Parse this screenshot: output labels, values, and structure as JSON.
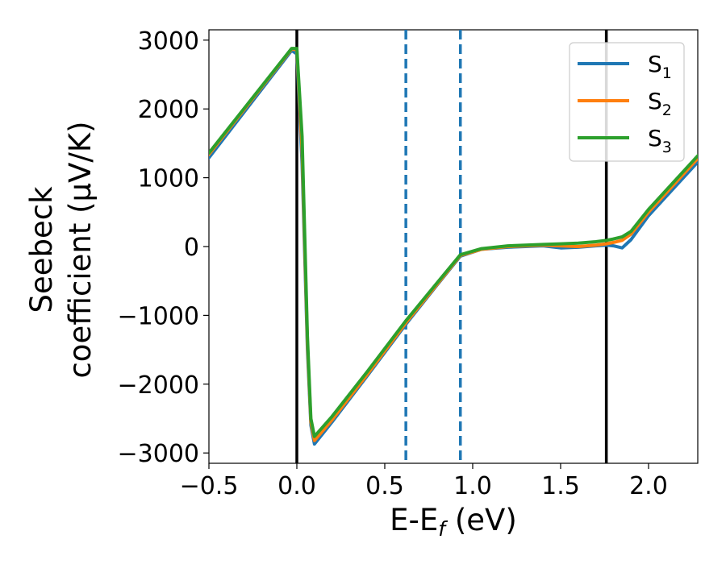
{
  "chart_data": {
    "type": "line",
    "xlabel": "E-E",
    "xlabel_sub": "f",
    "xlabel_unit": " (eV)",
    "ylabel_line1": "Seebeck",
    "ylabel_line2": "coefficient  (μV/K)",
    "xlim": [
      -0.5,
      2.28
    ],
    "ylim": [
      -3150,
      3150
    ],
    "xticks": [
      -0.5,
      0.0,
      0.5,
      1.0,
      1.5,
      2.0
    ],
    "xtick_labels": [
      "−0.5",
      "0.0",
      "0.5",
      "1.0",
      "1.5",
      "2.0"
    ],
    "yticks": [
      3000,
      2000,
      1000,
      0,
      -1000,
      -2000,
      -3000
    ],
    "ytick_labels": [
      "3000",
      "2000",
      "1000",
      "0",
      "−1000",
      "−2000",
      "−3000"
    ],
    "legend_position": "upper right",
    "vlines": [
      {
        "x": 0.0,
        "style": "solid",
        "color": "#000000"
      },
      {
        "x": 1.76,
        "style": "solid",
        "color": "#000000"
      },
      {
        "x": 0.62,
        "style": "dashed",
        "color": "#1f77b4"
      },
      {
        "x": 0.93,
        "style": "dashed",
        "color": "#1f77b4"
      }
    ],
    "series": [
      {
        "name": "S",
        "name_sub": "1",
        "color": "#1f77b4",
        "x": [
          -0.5,
          -0.03,
          0.0,
          0.03,
          0.06,
          0.08,
          0.1,
          0.2,
          0.4,
          0.62,
          0.8,
          0.93,
          1.05,
          1.2,
          1.3,
          1.4,
          1.5,
          1.6,
          1.7,
          1.76,
          1.8,
          1.85,
          1.9,
          2.0,
          2.28
        ],
        "y": [
          1290,
          2850,
          2800,
          1200,
          -1500,
          -2600,
          -2870,
          -2550,
          -1880,
          -1130,
          -550,
          -140,
          -40,
          -10,
          0,
          10,
          -20,
          -10,
          10,
          20,
          10,
          -20,
          100,
          450,
          1230
        ]
      },
      {
        "name": "S",
        "name_sub": "2",
        "color": "#ff7f0e",
        "x": [
          -0.5,
          -0.03,
          0.0,
          0.03,
          0.06,
          0.08,
          0.1,
          0.2,
          0.4,
          0.62,
          0.8,
          0.93,
          1.05,
          1.2,
          1.3,
          1.4,
          1.5,
          1.6,
          1.7,
          1.76,
          1.8,
          1.85,
          1.9,
          2.0,
          2.28
        ],
        "y": [
          1340,
          2870,
          2860,
          1400,
          -1400,
          -2550,
          -2820,
          -2520,
          -1860,
          -1110,
          -540,
          -130,
          -40,
          0,
          10,
          20,
          10,
          0,
          20,
          40,
          60,
          90,
          180,
          500,
          1280
        ]
      },
      {
        "name": "S",
        "name_sub": "3",
        "color": "#2ca02c",
        "x": [
          -0.5,
          -0.03,
          0.0,
          0.03,
          0.06,
          0.08,
          0.1,
          0.2,
          0.4,
          0.62,
          0.8,
          0.93,
          1.05,
          1.2,
          1.3,
          1.4,
          1.5,
          1.6,
          1.7,
          1.76,
          1.8,
          1.85,
          1.9,
          2.0,
          2.28
        ],
        "y": [
          1360,
          2880,
          2880,
          1600,
          -1300,
          -2500,
          -2760,
          -2470,
          -1820,
          -1080,
          -520,
          -120,
          -30,
          10,
          20,
          30,
          40,
          50,
          70,
          90,
          110,
          140,
          220,
          540,
          1320
        ]
      }
    ]
  }
}
